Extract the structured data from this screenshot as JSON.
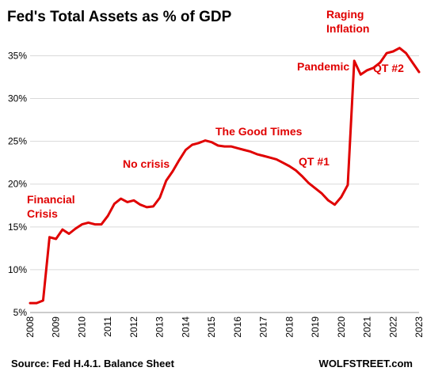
{
  "chart_data": {
    "type": "line",
    "title": "Fed's Total Assets as % of GDP",
    "xlabel": "",
    "ylabel": "",
    "xlim": [
      2008,
      2023
    ],
    "ylim": [
      5,
      38
    ],
    "y_ticks": [
      5,
      10,
      15,
      20,
      25,
      30,
      35
    ],
    "y_tick_labels": [
      "5%",
      "10%",
      "15%",
      "20%",
      "25%",
      "30%",
      "35%"
    ],
    "x_ticks": [
      2008,
      2009,
      2010,
      2011,
      2012,
      2013,
      2014,
      2015,
      2016,
      2017,
      2018,
      2019,
      2020,
      2021,
      2022,
      2023
    ],
    "x_tick_labels": [
      "2008",
      "2009",
      "2010",
      "2011",
      "2012",
      "2013",
      "2014",
      "2015",
      "2016",
      "2017",
      "2018",
      "2019",
      "2020",
      "2021",
      "2022",
      "2023"
    ],
    "grid": "horizontal",
    "line_color": "#e00000",
    "series": [
      {
        "x": [
          2008.0,
          2008.25,
          2008.5,
          2008.75,
          2009.0,
          2009.25,
          2009.5,
          2009.75,
          2010.0,
          2010.25,
          2010.5,
          2010.75,
          2011.0,
          2011.25,
          2011.5,
          2011.75,
          2012.0,
          2012.25,
          2012.5,
          2012.75,
          2013.0,
          2013.25,
          2013.5,
          2013.75,
          2014.0,
          2014.25,
          2014.5,
          2014.75,
          2015.0,
          2015.25,
          2015.5,
          2015.75,
          2016.0,
          2016.25,
          2016.5,
          2016.75,
          2017.0,
          2017.25,
          2017.5,
          2017.75,
          2018.0,
          2018.25,
          2018.5,
          2018.75,
          2019.0,
          2019.25,
          2019.5,
          2019.75,
          2020.0,
          2020.25,
          2020.5,
          2020.75,
          2021.0,
          2021.25,
          2021.5,
          2021.75,
          2022.0,
          2022.25,
          2022.5,
          2022.75,
          2023.0
        ],
        "values": [
          6.1,
          6.1,
          6.4,
          13.8,
          13.6,
          14.7,
          14.2,
          14.8,
          15.3,
          15.5,
          15.3,
          15.3,
          16.3,
          17.7,
          18.3,
          17.9,
          18.1,
          17.6,
          17.3,
          17.4,
          18.4,
          20.4,
          21.5,
          22.8,
          24.0,
          24.6,
          24.8,
          25.1,
          24.9,
          24.5,
          24.4,
          24.4,
          24.2,
          24.0,
          23.8,
          23.5,
          23.3,
          23.1,
          22.9,
          22.5,
          22.1,
          21.6,
          20.9,
          20.1,
          19.5,
          18.9,
          18.1,
          17.6,
          18.5,
          19.9,
          34.4,
          32.8,
          33.3,
          33.6,
          34.2,
          35.3,
          35.5,
          35.9,
          35.3,
          34.2,
          33.1
        ]
      }
    ],
    "annotations": [
      {
        "lines": [
          "Financial",
          "Crisis"
        ]
      },
      {
        "lines": [
          "No crisis"
        ]
      },
      {
        "lines": [
          "The Good Times"
        ]
      },
      {
        "lines": [
          "QT #1"
        ]
      },
      {
        "lines": [
          "Pandemic"
        ]
      },
      {
        "lines": [
          "Raging",
          "Inflation"
        ]
      },
      {
        "lines": [
          "QT #2"
        ]
      }
    ],
    "footer_left": "Source: Fed H.4.1. Balance Sheet",
    "footer_right": "WOLFSTREET.com"
  }
}
